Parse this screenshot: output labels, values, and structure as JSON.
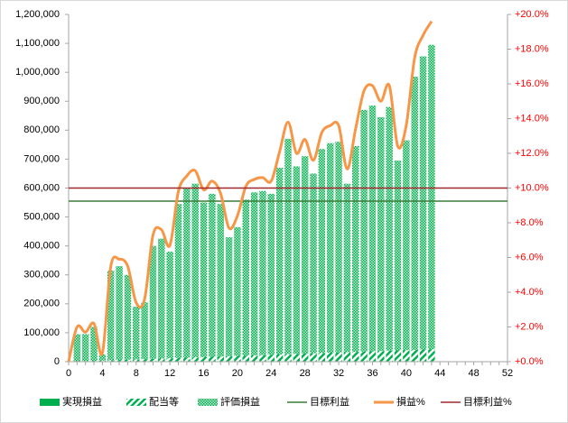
{
  "chart_data": {
    "type": "bar",
    "x": [
      1,
      2,
      3,
      4,
      5,
      6,
      7,
      8,
      9,
      10,
      11,
      12,
      13,
      14,
      15,
      16,
      17,
      18,
      19,
      20,
      21,
      22,
      23,
      24,
      25,
      26,
      27,
      28,
      29,
      30,
      31,
      32,
      33,
      34,
      35,
      36,
      37,
      38,
      39,
      40,
      41,
      42,
      43
    ],
    "xlim": [
      0,
      52
    ],
    "xticks": [
      0,
      4,
      8,
      12,
      16,
      20,
      24,
      28,
      32,
      36,
      40,
      44,
      48,
      52
    ],
    "ylim": [
      0,
      1200000
    ],
    "yticks": [
      0,
      {
        "value": 100000,
        "label": "100,000"
      },
      {
        "value": 200000,
        "label": "200,000"
      },
      {
        "value": 300000,
        "label": "300,000"
      },
      {
        "value": 400000,
        "label": "400,000"
      },
      {
        "value": 500000,
        "label": "500,000"
      },
      {
        "value": 600000,
        "label": "600,000"
      },
      {
        "value": 700000,
        "label": "700,000"
      },
      {
        "value": 800000,
        "label": "800,000"
      },
      {
        "value": 900000,
        "label": "900,000"
      },
      {
        "value": 1000000,
        "label": "1,000,000"
      },
      {
        "value": 1100000,
        "label": "1,100,000"
      },
      {
        "value": 1200000,
        "label": "1,200,000"
      }
    ],
    "y2lim": [
      0,
      20
    ],
    "y2ticks": [
      {
        "value": 0,
        "label": "+0.0%"
      },
      {
        "value": 2,
        "label": "+2.0%"
      },
      {
        "value": 4,
        "label": "+4.0%"
      },
      {
        "value": 6,
        "label": "+6.0%"
      },
      {
        "value": 8,
        "label": "+8.0%"
      },
      {
        "value": 10,
        "label": "+10.0%"
      },
      {
        "value": 12,
        "label": "+12.0%"
      },
      {
        "value": 14,
        "label": "+14.0%"
      },
      {
        "value": 16,
        "label": "+16.0%"
      },
      {
        "value": 18,
        "label": "+18.0%"
      },
      {
        "value": 20,
        "label": "+20.0%"
      }
    ],
    "y2_color": "#ff0000",
    "legend": "bottom",
    "series": [
      {
        "name": "実現損益",
        "type": "bar",
        "fill": "solid",
        "color": "#00b050",
        "values": [
          0,
          0,
          0,
          0,
          0,
          0,
          0,
          0,
          0,
          0,
          0,
          0,
          0,
          0,
          0,
          0,
          0,
          0,
          0,
          0,
          0,
          0,
          0,
          0,
          0,
          0,
          0,
          0,
          0,
          0,
          0,
          0,
          0,
          0,
          0,
          0,
          0,
          0,
          0,
          0,
          0,
          0,
          0
        ]
      },
      {
        "name": "配当等",
        "type": "bar",
        "fill": "hatch",
        "color": "#00b050",
        "values": [
          1000,
          2000,
          3000,
          4000,
          5000,
          6000,
          7000,
          8000,
          9000,
          10000,
          11000,
          12000,
          13000,
          14000,
          15000,
          16000,
          17000,
          18000,
          19000,
          20000,
          21000,
          22000,
          23000,
          24000,
          25000,
          26000,
          27000,
          28000,
          29000,
          30000,
          31000,
          32000,
          33000,
          34000,
          35000,
          36000,
          37000,
          38000,
          39000,
          40000,
          41000,
          42000,
          43000
        ]
      },
      {
        "name": "評価損益",
        "type": "bar",
        "fill": "dots",
        "color": "#00b050",
        "values": [
          94000,
          93000,
          117000,
          21000,
          310000,
          324000,
          293000,
          182000,
          196000,
          390000,
          414000,
          368000,
          532000,
          586000,
          600000,
          534000,
          563000,
          527000,
          411000,
          445000,
          539000,
          563000,
          567000,
          556000,
          645000,
          744000,
          648000,
          682000,
          621000,
          705000,
          724000,
          728000,
          582000,
          711000,
          835000,
          849000,
          808000,
          842000,
          656000,
          725000,
          944000,
          1013000,
          1052000
        ]
      },
      {
        "name": "目標利益",
        "type": "hline",
        "color": "#3a7d3a",
        "value": 555000
      },
      {
        "name": "損益%",
        "type": "line",
        "axis": "y2",
        "color": "#f79646",
        "x": [
          0,
          1,
          2,
          3,
          4,
          5,
          6,
          7,
          8,
          9,
          10,
          11,
          12,
          13,
          14,
          15,
          16,
          17,
          18,
          19,
          20,
          21,
          22,
          23,
          24,
          25,
          26,
          27,
          28,
          29,
          30,
          31,
          32,
          33,
          34,
          35,
          36,
          37,
          38,
          39,
          40,
          41,
          42,
          43
        ],
        "values": [
          0,
          2.0,
          1.7,
          2.2,
          0.5,
          5.5,
          5.9,
          5.5,
          3.4,
          3.6,
          7.3,
          7.6,
          6.7,
          9.8,
          10.7,
          11.0,
          9.9,
          10.4,
          9.7,
          7.7,
          8.4,
          10.1,
          10.5,
          10.6,
          10.4,
          12.1,
          13.8,
          12.0,
          12.8,
          11.6,
          13.2,
          13.6,
          13.6,
          11.1,
          13.4,
          15.6,
          15.9,
          15.0,
          15.9,
          12.4,
          13.6,
          17.5,
          18.8,
          19.6
        ]
      },
      {
        "name": "目標利益%",
        "type": "hline",
        "axis": "y2",
        "color": "#a0282d",
        "value": 10
      }
    ]
  }
}
